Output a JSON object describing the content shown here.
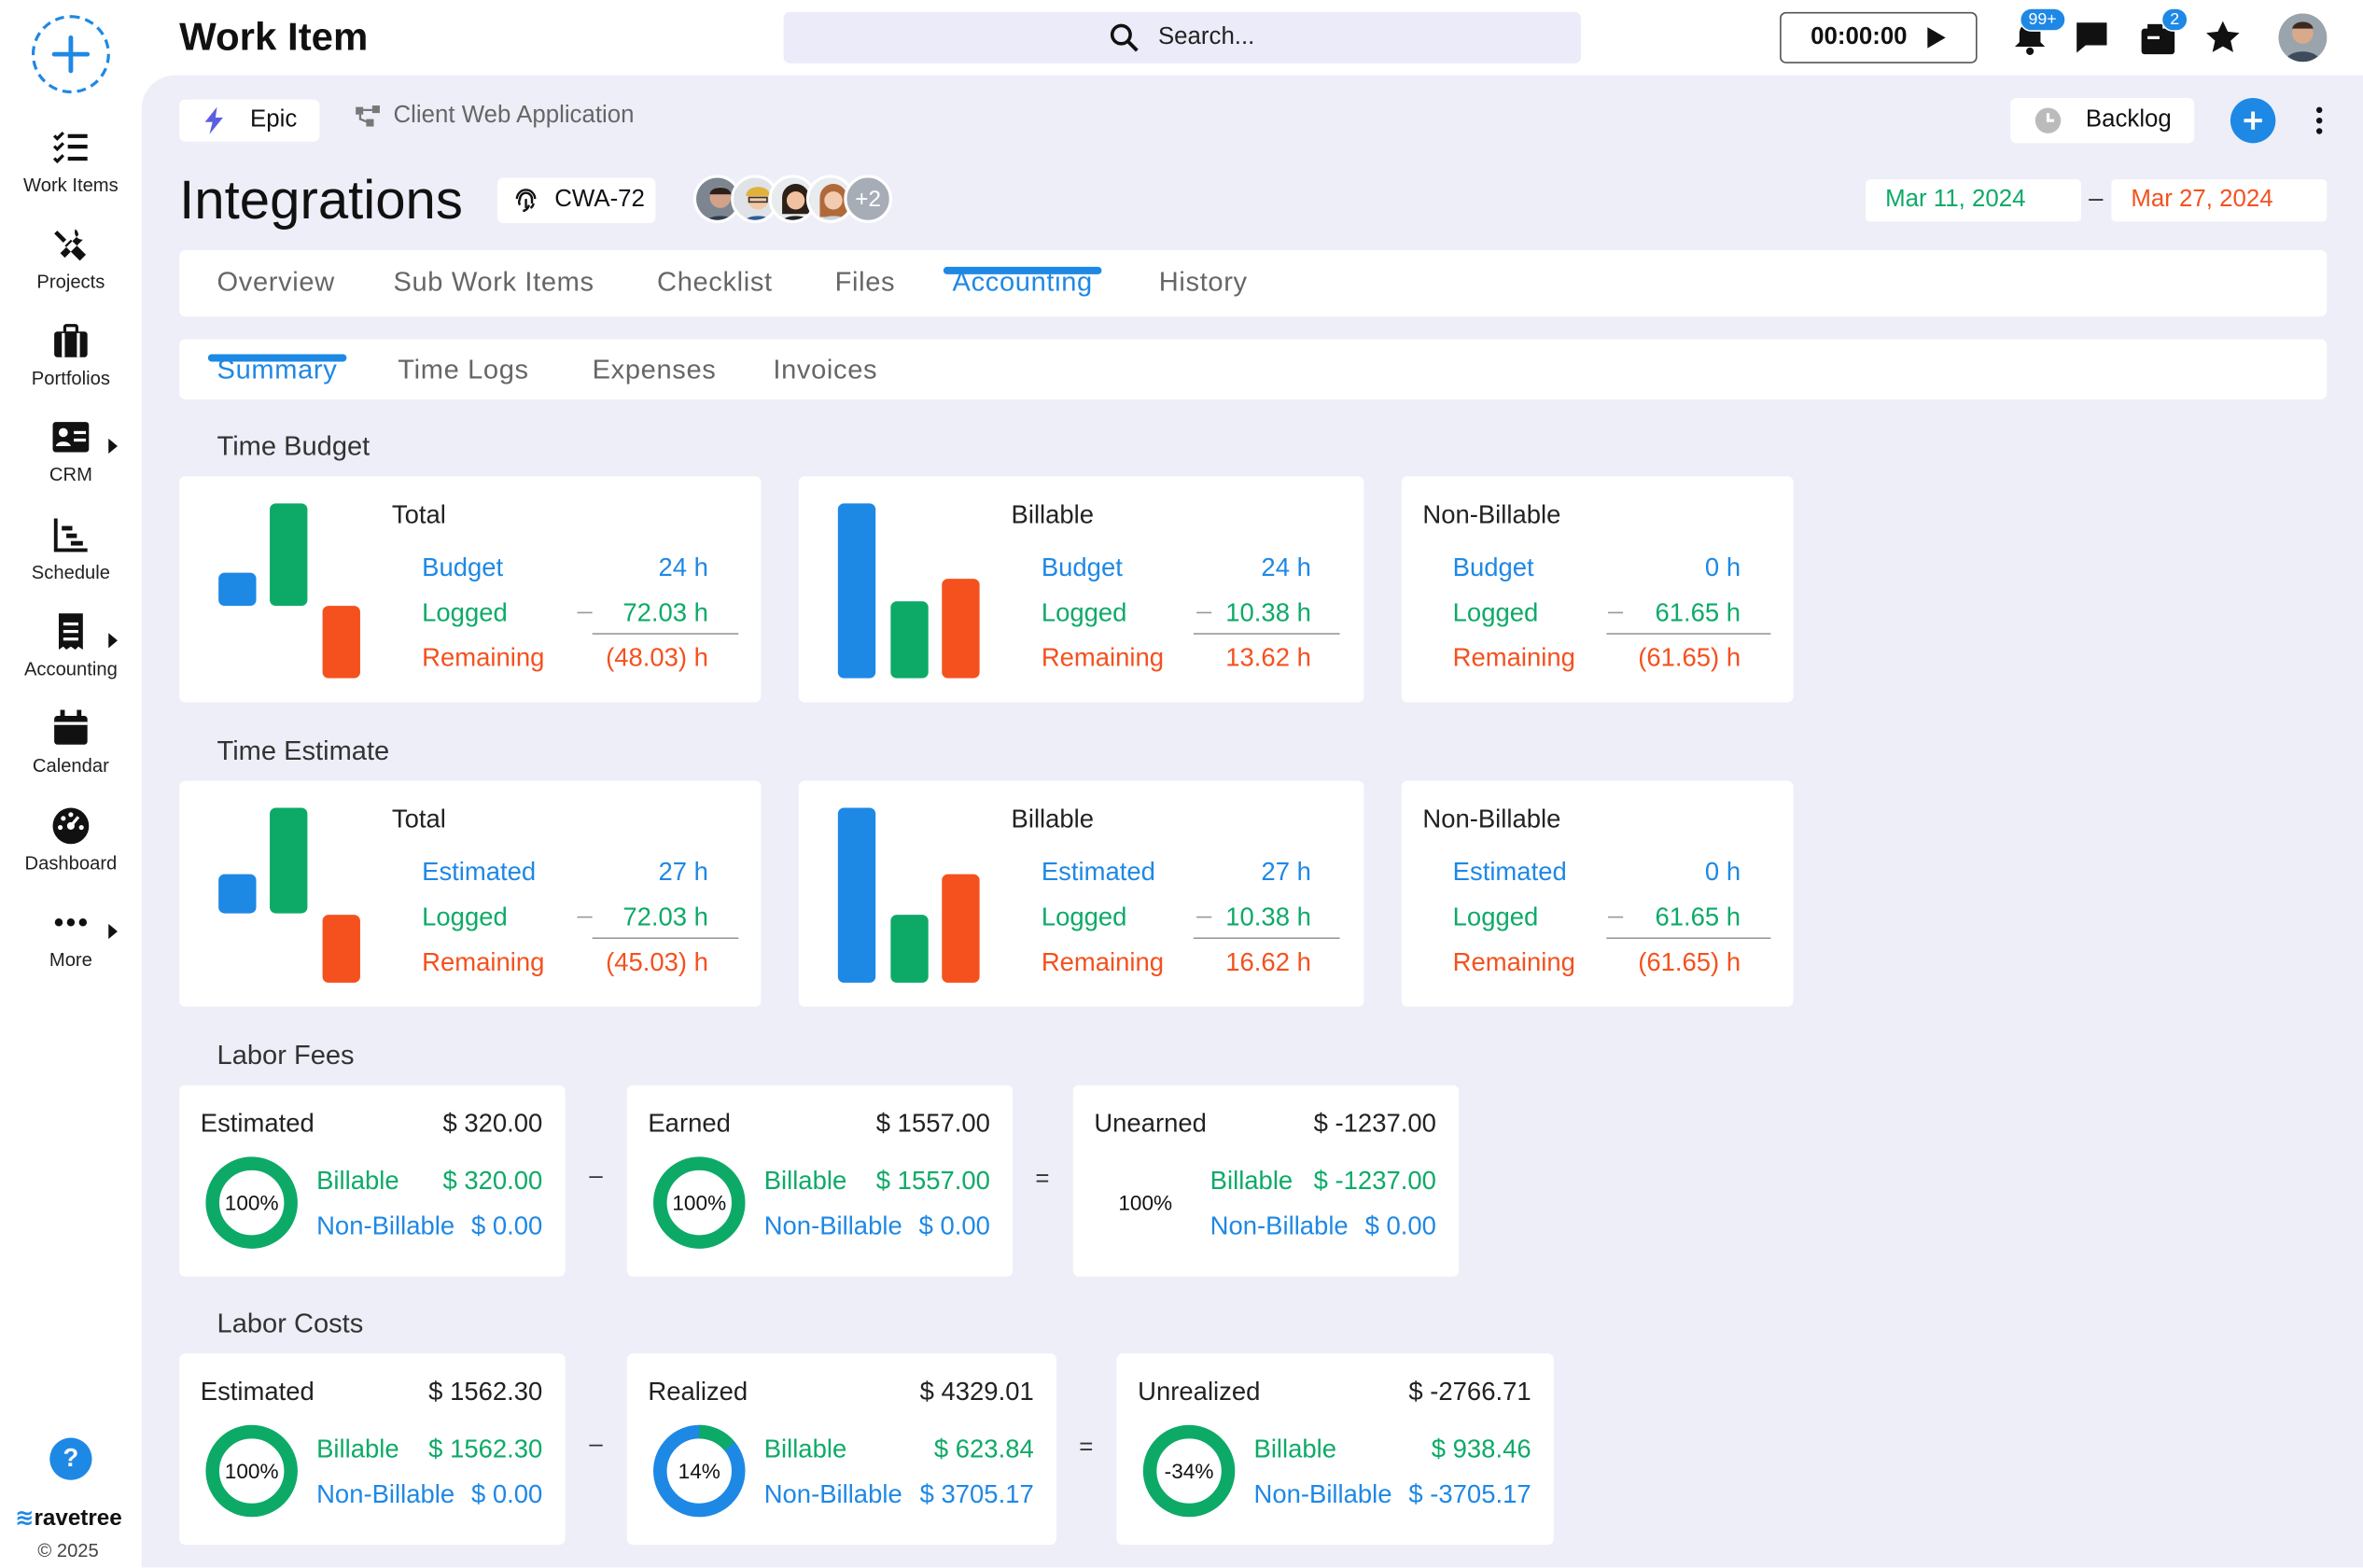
{
  "app": {
    "title": "Work Item",
    "search_placeholder": "Search...",
    "timer": "00:00:00",
    "notif_badge": "99+",
    "cart_badge": "2",
    "brand": "ravetree",
    "copyright": "© 2025",
    "help": "?"
  },
  "sidebar": {
    "items": [
      {
        "label": "Work Items",
        "icon": "checklist-icon"
      },
      {
        "label": "Projects",
        "icon": "tools-icon"
      },
      {
        "label": "Portfolios",
        "icon": "briefcase-icon"
      },
      {
        "label": "CRM",
        "icon": "contact-card-icon"
      },
      {
        "label": "Schedule",
        "icon": "gantt-icon"
      },
      {
        "label": "Accounting",
        "icon": "receipt-icon"
      },
      {
        "label": "Calendar",
        "icon": "calendar-icon"
      },
      {
        "label": "Dashboard",
        "icon": "gauge-icon"
      },
      {
        "label": "More",
        "icon": "more-icon"
      }
    ]
  },
  "item": {
    "type": "Epic",
    "project": "Client Web Application",
    "title": "Integrations",
    "key": "CWA-72",
    "assignees_extra": "+2",
    "status": "Backlog",
    "start_date": "Mar 11, 2024",
    "date_sep": "–",
    "end_date": "Mar 27, 2024"
  },
  "tabs": [
    "Overview",
    "Sub Work Items",
    "Checklist",
    "Files",
    "Accounting",
    "History"
  ],
  "subtabs": [
    "Summary",
    "Time Logs",
    "Expenses",
    "Invoices"
  ],
  "colors": {
    "blue": "#1e88e5",
    "green": "#0daa67",
    "orange": "#f4511e"
  },
  "time_budget": {
    "title": "Time Budget",
    "cards": [
      {
        "title": "Total",
        "r1": "Budget",
        "v1": "24 h",
        "r2": "Logged",
        "v2": "72.03 h",
        "r3": "Remaining",
        "v3": "(48.03) h"
      },
      {
        "title": "Billable",
        "r1": "Budget",
        "v1": "24 h",
        "r2": "Logged",
        "v2": "10.38 h",
        "r3": "Remaining",
        "v3": "13.62 h"
      },
      {
        "title": "Non-Billable",
        "r1": "Budget",
        "v1": "0 h",
        "r2": "Logged",
        "v2": "61.65 h",
        "r3": "Remaining",
        "v3": "(61.65) h"
      }
    ]
  },
  "time_estimate": {
    "title": "Time Estimate",
    "cards": [
      {
        "title": "Total",
        "r1": "Estimated",
        "v1": "27 h",
        "r2": "Logged",
        "v2": "72.03 h",
        "r3": "Remaining",
        "v3": "(45.03) h"
      },
      {
        "title": "Billable",
        "r1": "Estimated",
        "v1": "27 h",
        "r2": "Logged",
        "v2": "10.38 h",
        "r3": "Remaining",
        "v3": "16.62 h"
      },
      {
        "title": "Non-Billable",
        "r1": "Estimated",
        "v1": "0 h",
        "r2": "Logged",
        "v2": "61.65 h",
        "r3": "Remaining",
        "v3": "(61.65) h"
      }
    ]
  },
  "labor_fees": {
    "title": "Labor Fees",
    "op1": "–",
    "op2": "=",
    "cards": [
      {
        "title": "Estimated",
        "total": "$ 320.00",
        "pct": "100%",
        "b_label": "Billable",
        "b_val": "$ 320.00",
        "nb_label": "Non-Billable",
        "nb_val": "$ 0.00"
      },
      {
        "title": "Earned",
        "total": "$ 1557.00",
        "pct": "100%",
        "b_label": "Billable",
        "b_val": "$ 1557.00",
        "nb_label": "Non-Billable",
        "nb_val": "$ 0.00"
      },
      {
        "title": "Unearned",
        "total": "$ -1237.00",
        "pct": "100%",
        "b_label": "Billable",
        "b_val": "$ -1237.00",
        "nb_label": "Non-Billable",
        "nb_val": "$ 0.00"
      }
    ]
  },
  "labor_costs": {
    "title": "Labor Costs",
    "op1": "–",
    "op2": "=",
    "cards": [
      {
        "title": "Estimated",
        "total": "$ 1562.30",
        "pct": "100%",
        "b_label": "Billable",
        "b_val": "$ 1562.30",
        "nb_label": "Non-Billable",
        "nb_val": "$ 0.00"
      },
      {
        "title": "Realized",
        "total": "$ 4329.01",
        "pct": "14%",
        "b_label": "Billable",
        "b_val": "$ 623.84",
        "nb_label": "Non-Billable",
        "nb_val": "$ 3705.17"
      },
      {
        "title": "Unrealized",
        "total": "$ -2766.71",
        "pct": "-34%",
        "b_label": "Billable",
        "b_val": "$ 938.46",
        "nb_label": "Non-Billable",
        "nb_val": "$ -3705.17"
      }
    ]
  }
}
